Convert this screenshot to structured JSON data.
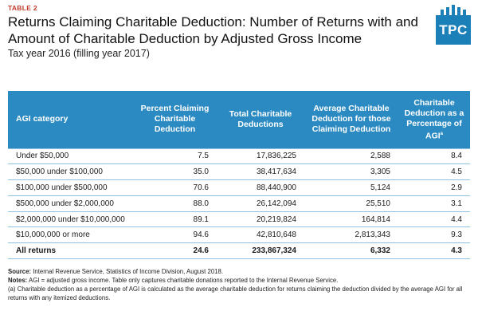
{
  "header": {
    "table_label": "TABLE 2",
    "title_line1": "Returns Claiming Charitable Deduction: Number of Returns with and",
    "title_line2": "Amount of Charitable Deduction by Adjusted Gross Income",
    "subtitle": "Tax year 2016 (filling year 2017)"
  },
  "logo": {
    "text": "TPC",
    "color": "#1b7fb8"
  },
  "table": {
    "columns": [
      "AGI category",
      "Percent Claiming Charitable Deduction",
      "Total Charitable Deductions",
      "Average Charitable Deduction for those Claiming Deduction",
      "Charitable Deduction as a Percentage of AGI"
    ],
    "footnote_marker": "a",
    "rows": [
      [
        "Under $50,000",
        "7.5",
        "17,836,225",
        "2,588",
        "8.4"
      ],
      [
        "$50,000 under $100,000",
        "35.0",
        "38,417,634",
        "3,305",
        "4.5"
      ],
      [
        "$100,000 under $500,000",
        "70.6",
        "88,440,900",
        "5,124",
        "2.9"
      ],
      [
        "$500,000 under $2,000,000",
        "88.0",
        "26,142,094",
        "25,510",
        "3.1"
      ],
      [
        "$2,000,000 under $10,000,000",
        "89.1",
        "20,219,824",
        "164,814",
        "4.4"
      ],
      [
        "$10,000,000 or more",
        "94.6",
        "42,810,648",
        "2,813,343",
        "9.3"
      ]
    ],
    "total": [
      "All returns",
      "24.6",
      "233,867,324",
      "6,332",
      "4.3"
    ],
    "header_color": "#2b8ac2"
  },
  "notes": {
    "source_label": "Source:",
    "source_text": "Internal Revenue Service, Statistics of Income Division, August 2018.",
    "notes_label": "Notes:",
    "notes_text": "AGI = adjusted gross income. Table only captures charitable donations reported to the Internal Revenue Service.",
    "footnote_a": "(a) Charitable deduction as a percentage of AGI is calculated as the average charitable deduction for returns claiming the deduction divided by the average AGI for all returns with any itemized deductions."
  }
}
